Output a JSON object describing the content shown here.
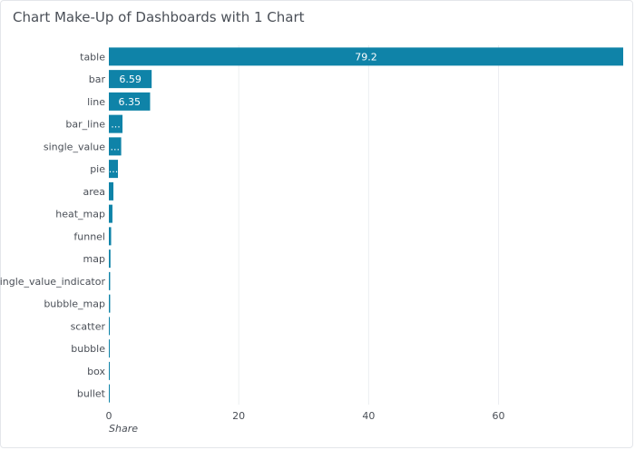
{
  "chart_data": {
    "type": "bar",
    "orientation": "horizontal",
    "title": "Chart Make-Up of Dashboards with 1 Chart",
    "xlabel": "Share",
    "ylabel": "",
    "xlim": [
      0,
      79.2
    ],
    "xticks": [
      0,
      20,
      40,
      60
    ],
    "grid": true,
    "color": "#0f83a8",
    "categories": [
      "table",
      "bar",
      "line",
      "bar_line",
      "single_value",
      "pie",
      "area",
      "heat_map",
      "funnel",
      "map",
      "single_value_indicator",
      "bubble_map",
      "scatter",
      "bubble",
      "box",
      "bullet"
    ],
    "values": [
      79.2,
      6.59,
      6.35,
      2.1,
      1.9,
      1.4,
      0.7,
      0.55,
      0.35,
      0.25,
      0.2,
      0.2,
      0.15,
      0.12,
      0.1,
      0.08
    ],
    "data_labels": [
      "79.2",
      "6.59",
      "6.35",
      "...",
      "...",
      "...",
      "",
      "",
      "",
      "",
      "",
      "",
      "",
      "",
      "",
      ""
    ]
  }
}
